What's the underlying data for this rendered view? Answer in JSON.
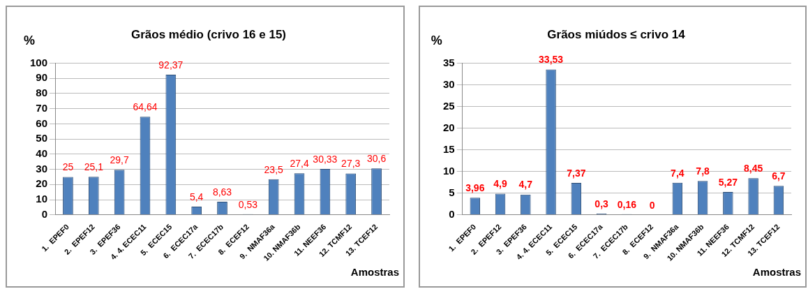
{
  "chart_data": [
    {
      "type": "bar",
      "title": "Grãos médio (crivo 16 e 15)",
      "ylabel": "%",
      "xlabel": "Amostras",
      "categories": [
        "1.  EPEF0",
        "2.  EPEF12",
        "3.  EPEF36",
        "4. 4. ECEC11",
        "5.  ECEC15",
        "6.  ECEC17a",
        "7.  ECEC17b",
        "8.  ECEF12",
        "9.  NMAF36a",
        "10. NMAF36b",
        "11. NEEF36",
        "12. TCMF12",
        "13. TCEF12"
      ],
      "values": [
        25,
        25.1,
        29.7,
        64.64,
        92.37,
        5.4,
        8.63,
        0.53,
        23.5,
        27.4,
        30.33,
        27.3,
        30.6
      ],
      "value_labels": [
        "25",
        "25,1",
        "29,7",
        "64,64",
        "92,37",
        "5,4",
        "8,63",
        "0,53",
        "23,5",
        "27,4",
        "30,33",
        "27,3",
        "30,6"
      ],
      "color": "#4f81bd",
      "ylim": [
        0,
        100
      ],
      "yticks": [
        0,
        10,
        20,
        30,
        40,
        50,
        60,
        70,
        80,
        90,
        100
      ],
      "grid": "y",
      "legend": false
    },
    {
      "type": "bar",
      "title": "Grãos miúdos ≤ crivo 14",
      "ylabel": "%",
      "xlabel": "Amostras",
      "categories": [
        "1.  EPEF0",
        "2.  EPEF12",
        "3.  EPEF36",
        "4. 4. ECEC11",
        "5.  ECEC15",
        "6.  ECEC17a",
        "7.  ECEC17b",
        "8.  ECEF12",
        "9.  NMAF36a",
        "10. NMAF36b",
        "11. NEEF36",
        "12. TCMF12",
        "13. TCEF12"
      ],
      "values": [
        3.96,
        4.9,
        4.7,
        33.53,
        7.37,
        0.3,
        0.16,
        0,
        7.4,
        7.8,
        5.27,
        8.45,
        6.7
      ],
      "value_labels": [
        "3,96",
        "4,9",
        "4,7",
        "33,53",
        "7,37",
        "0,3",
        "0,16",
        "0",
        "7,4",
        "7,8",
        "5,27",
        "8,45",
        "6,7"
      ],
      "color": "#4f81bd",
      "ylim": [
        0,
        35
      ],
      "yticks": [
        0,
        5,
        10,
        15,
        20,
        25,
        30,
        35
      ],
      "grid": "y",
      "legend": false
    }
  ]
}
